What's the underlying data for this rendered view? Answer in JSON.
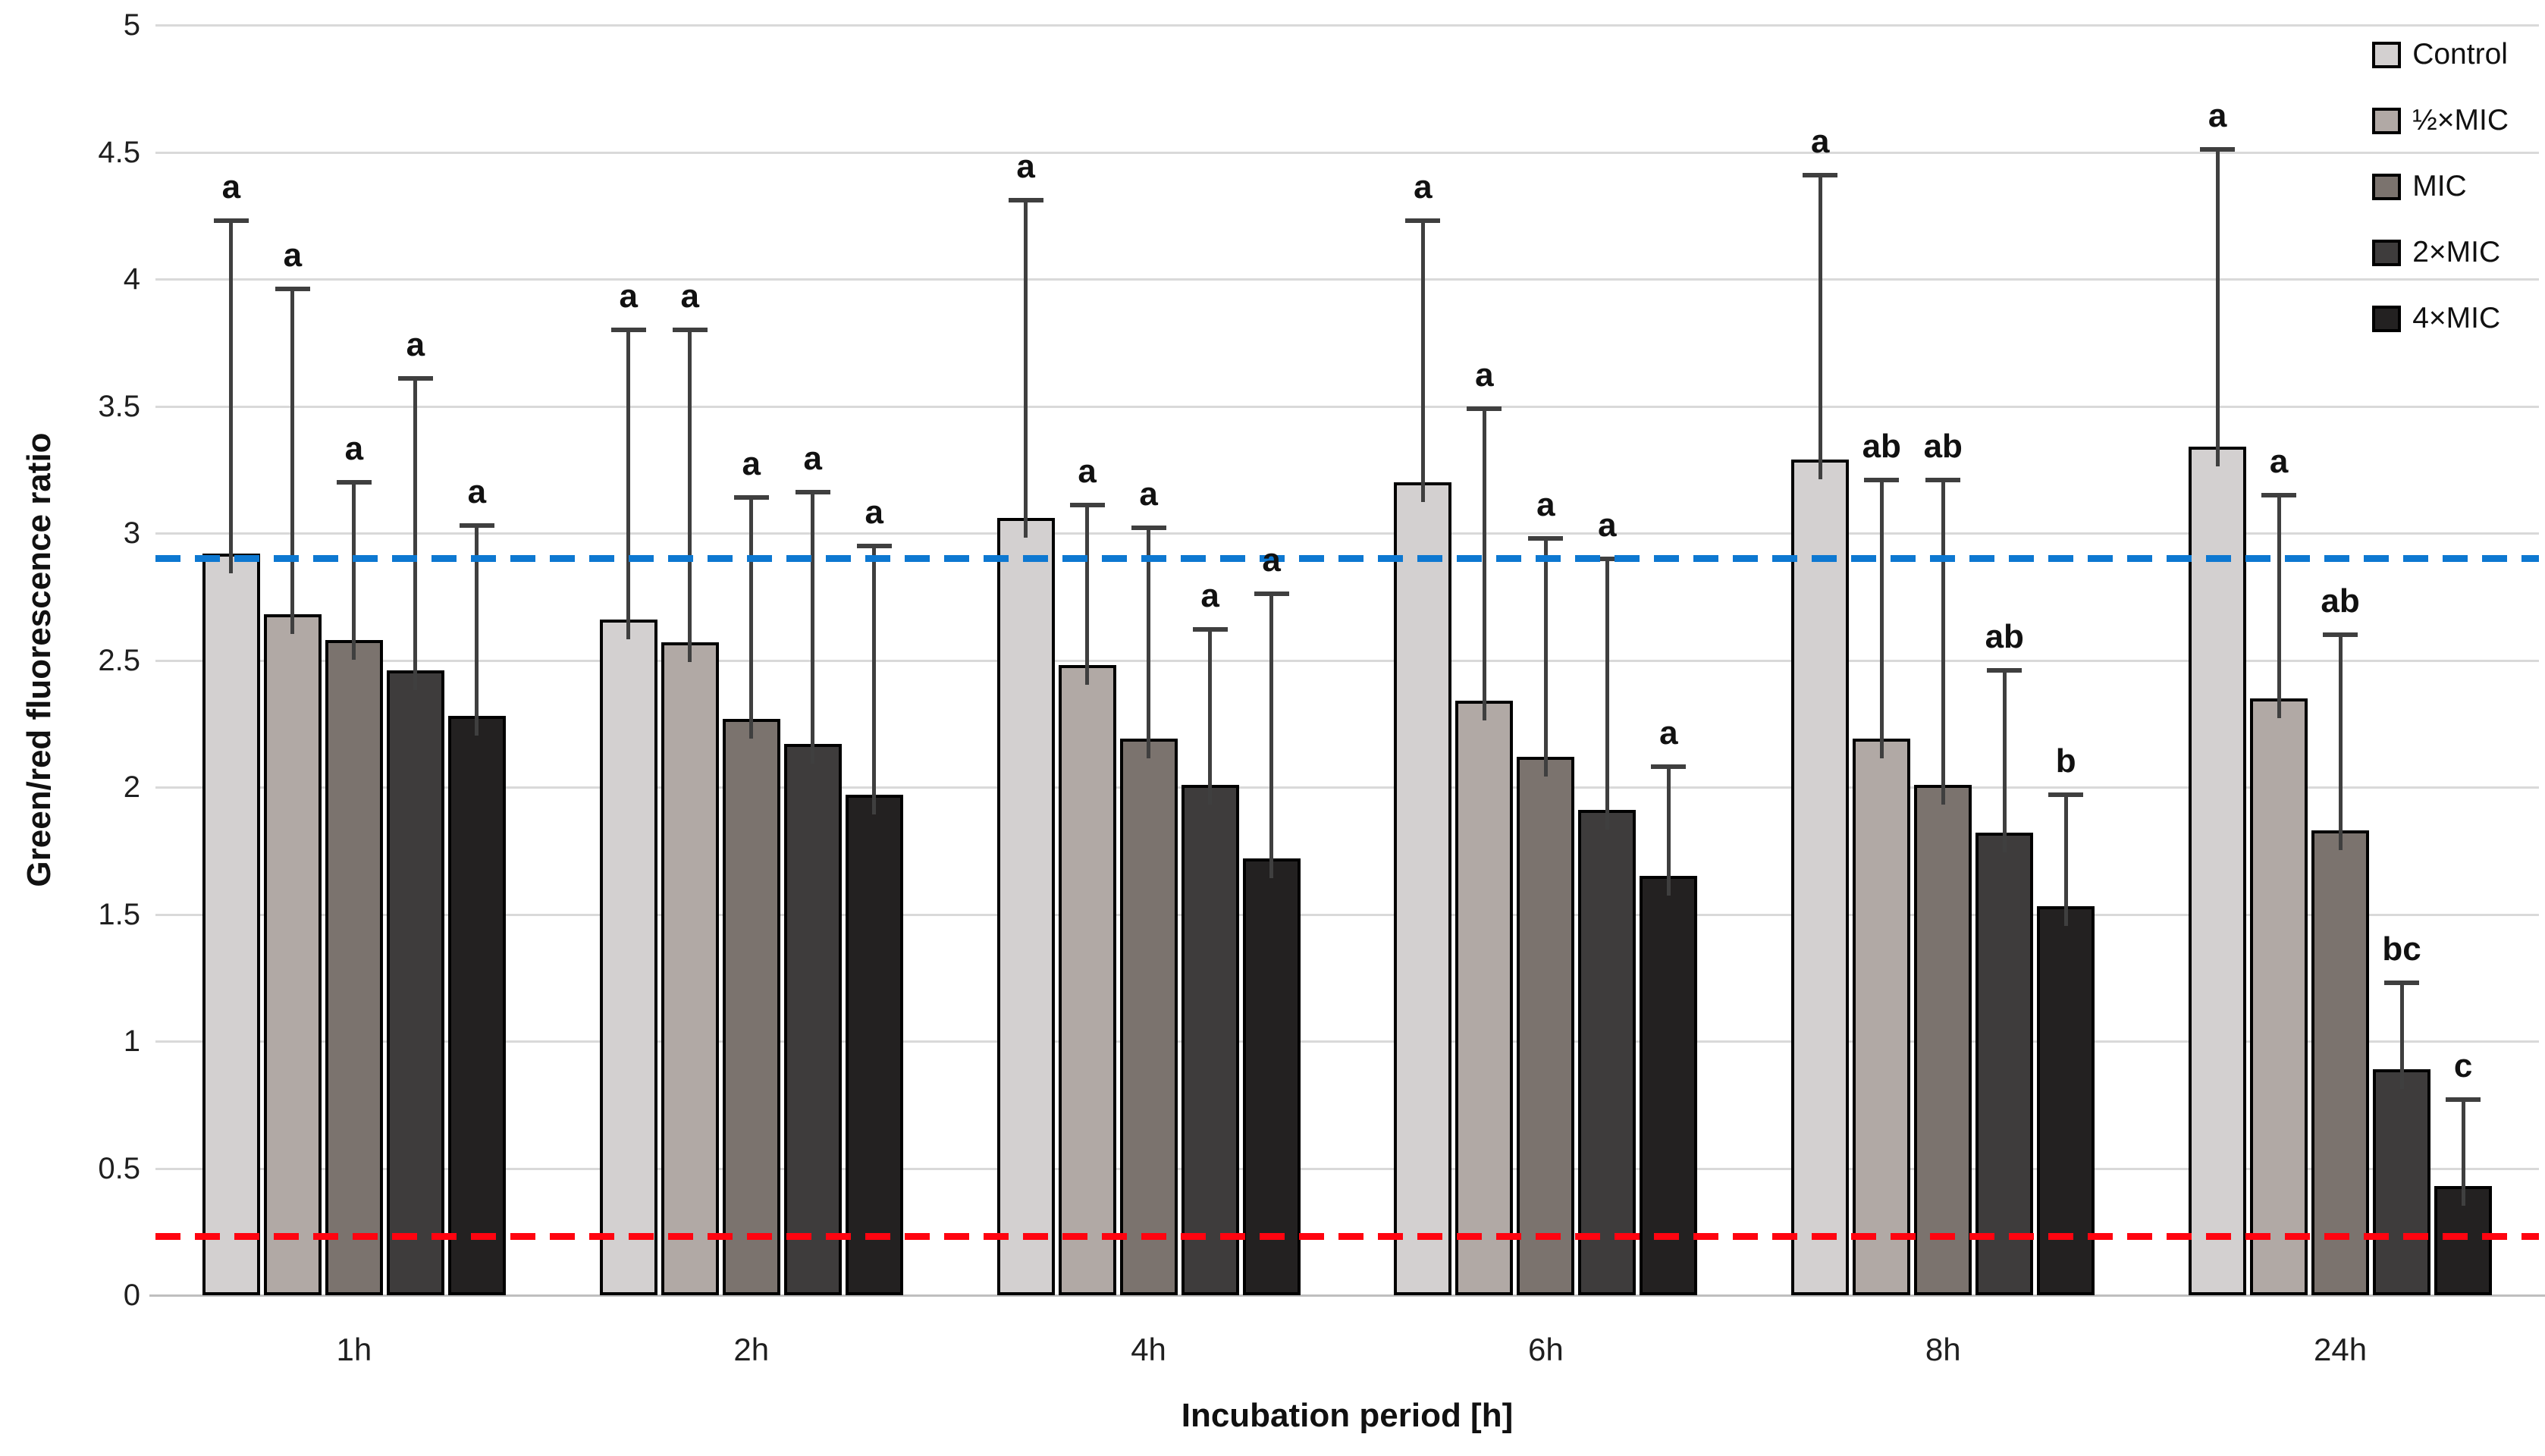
{
  "chart_data": {
    "type": "bar",
    "title": "",
    "xlabel": "Incubation period [h]",
    "ylabel": "Green/red fluorescence ratio",
    "ylim": [
      0,
      5
    ],
    "ytick_step": 0.5,
    "yticks": [
      "0",
      "0.5",
      "1",
      "1.5",
      "2",
      "2.5",
      "3",
      "3.5",
      "4",
      "4.5",
      "5"
    ],
    "grid": true,
    "categories": [
      "1h",
      "2h",
      "4h",
      "6h",
      "8h",
      "24h"
    ],
    "series": [
      {
        "name": "Control",
        "slug": "control",
        "color": "#d3d0d0",
        "values": [
          2.92,
          2.66,
          3.06,
          3.2,
          3.29,
          3.34
        ],
        "error_tops": [
          4.23,
          3.8,
          4.31,
          4.23,
          4.41,
          4.51
        ],
        "letters": [
          "a",
          "a",
          "a",
          "a",
          "a",
          "a"
        ]
      },
      {
        "name": "½×MIC",
        "slug": "half-mic",
        "color": "#b1a9a5",
        "values": [
          2.68,
          2.57,
          2.48,
          2.34,
          2.19,
          2.35
        ],
        "error_tops": [
          3.96,
          3.8,
          3.11,
          3.49,
          3.21,
          3.15
        ],
        "letters": [
          "a",
          "a",
          "a",
          "a",
          "ab",
          "a"
        ]
      },
      {
        "name": "MIC",
        "slug": "mic",
        "color": "#7b736e",
        "values": [
          2.58,
          2.27,
          2.19,
          2.12,
          2.01,
          1.83
        ],
        "error_tops": [
          3.2,
          3.14,
          3.02,
          2.98,
          3.21,
          2.6
        ],
        "letters": [
          "a",
          "a",
          "a",
          "a",
          "ab",
          "ab"
        ]
      },
      {
        "name": "2×MIC",
        "slug": "2x-mic",
        "color": "#3e3c3c",
        "values": [
          2.46,
          2.17,
          2.01,
          1.91,
          1.82,
          0.89
        ],
        "error_tops": [
          3.61,
          3.16,
          2.62,
          2.9,
          2.46,
          1.23
        ],
        "letters": [
          "a",
          "a",
          "a",
          "a",
          "ab",
          "bc"
        ]
      },
      {
        "name": "4×MIC",
        "slug": "4x-mic",
        "color": "#232121",
        "values": [
          2.28,
          1.97,
          1.72,
          1.65,
          1.53,
          0.43
        ],
        "error_tops": [
          3.03,
          2.95,
          2.76,
          2.08,
          1.97,
          0.77
        ],
        "letters": [
          "a",
          "a",
          "a",
          "a",
          "b",
          "c"
        ]
      }
    ],
    "reference_lines": [
      {
        "name": "blue-reference-line",
        "value": 2.9,
        "color": "#0d78d1",
        "style": "dashed"
      },
      {
        "name": "red-reference-line",
        "value": 0.23,
        "color": "#ff0410",
        "style": "dashed"
      }
    ],
    "legend": {
      "position": "top-right",
      "entries": [
        "Control",
        "½×MIC",
        "MIC",
        "2×MIC",
        "4×MIC"
      ]
    }
  }
}
